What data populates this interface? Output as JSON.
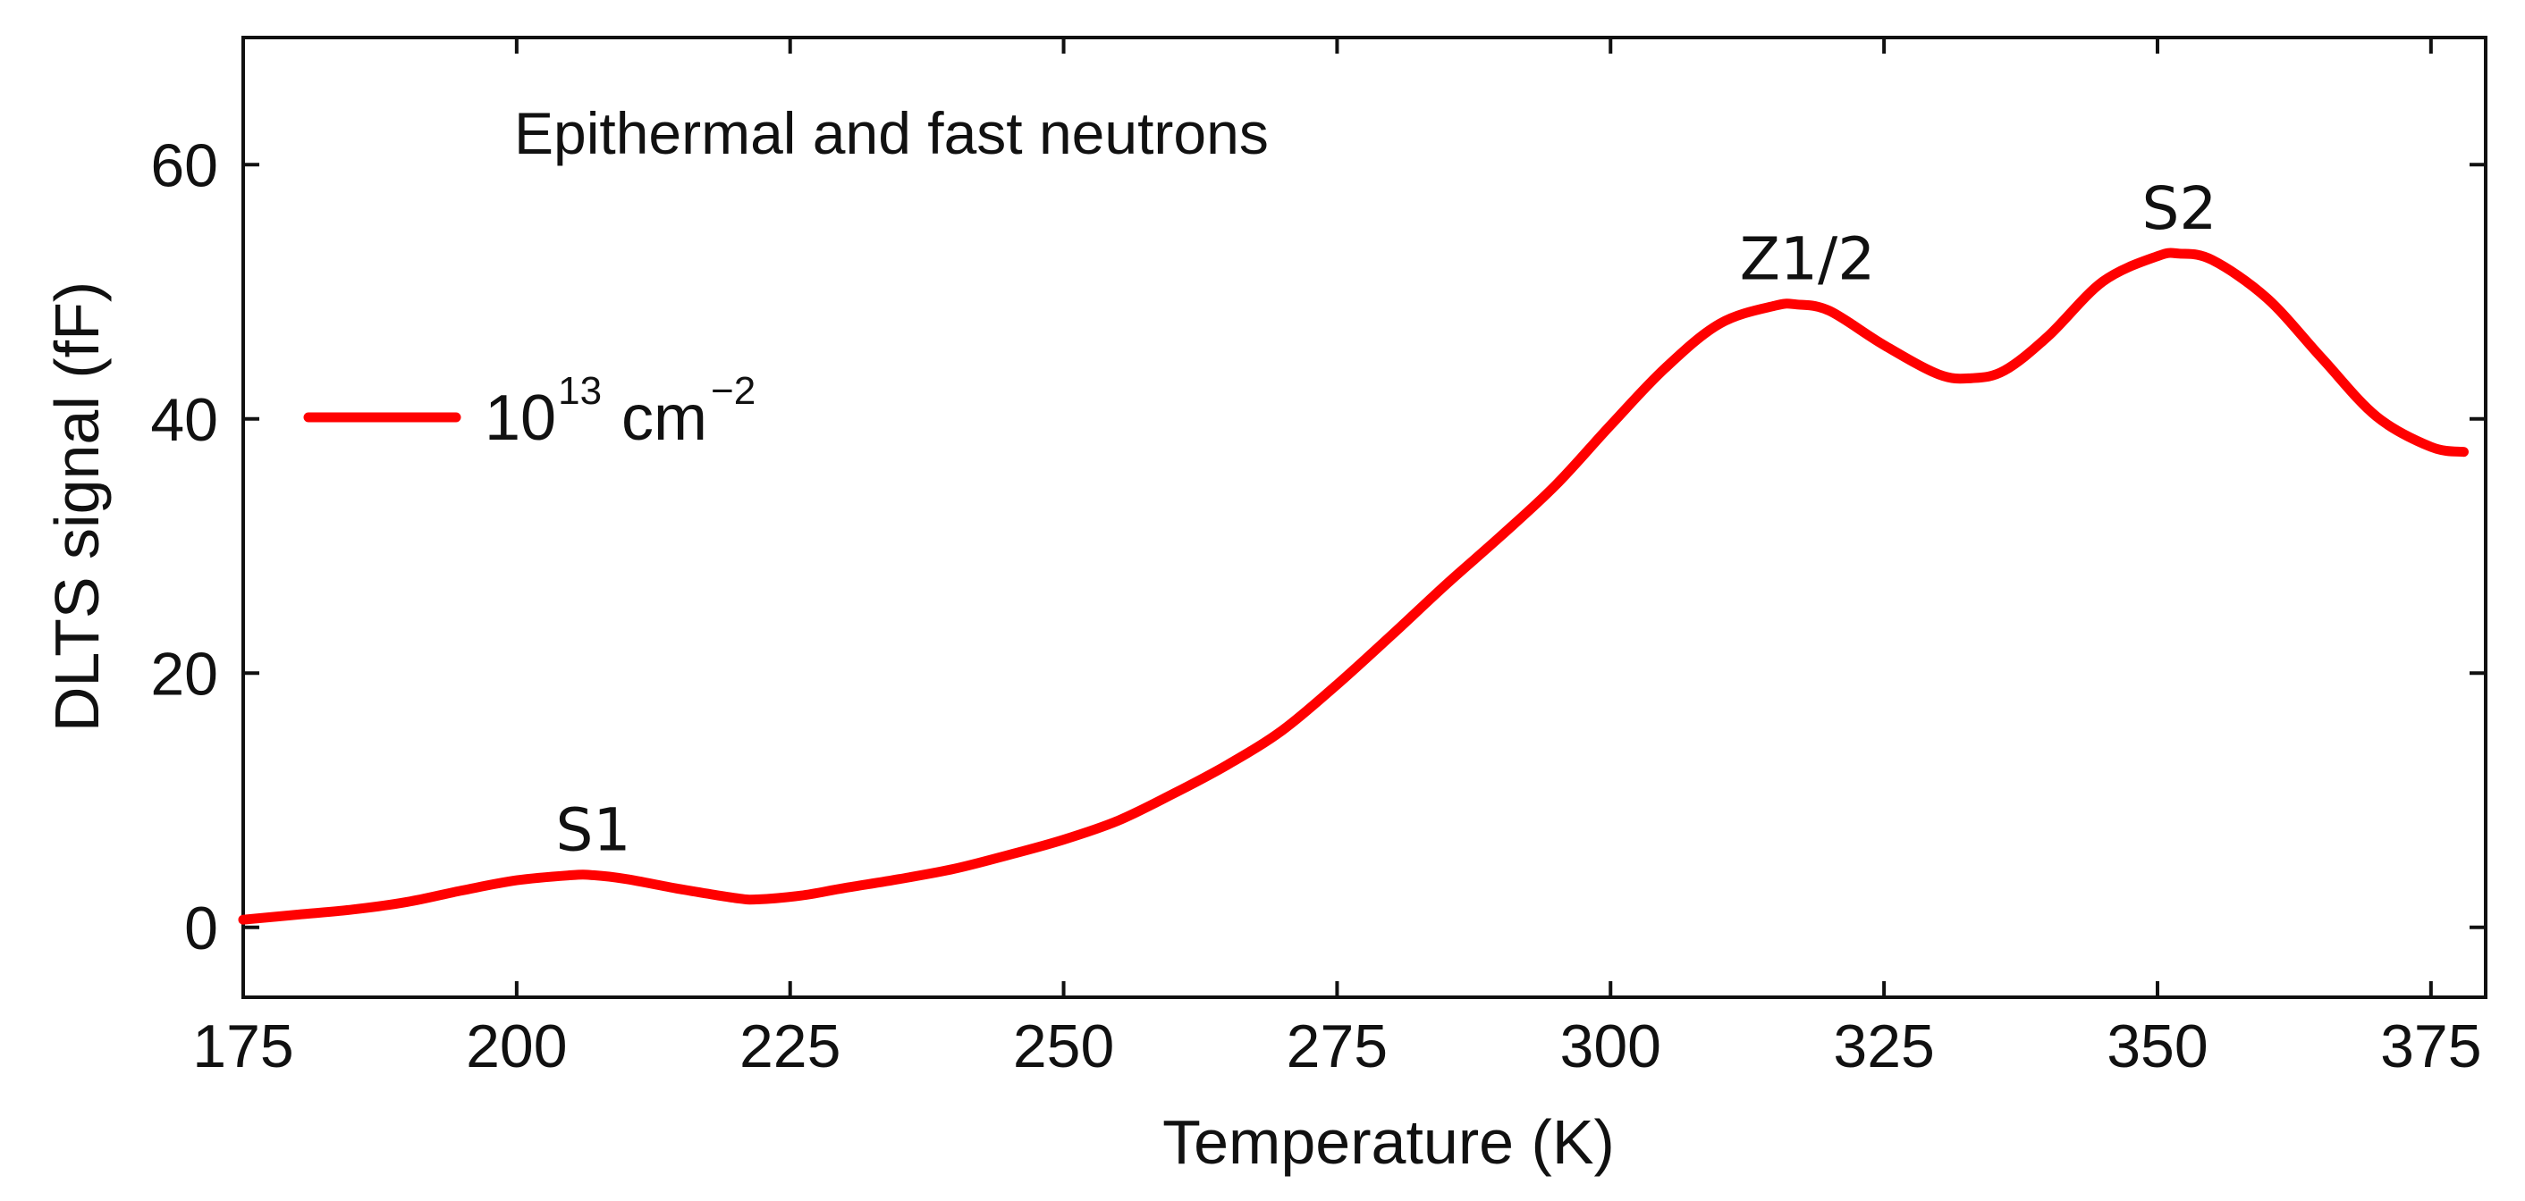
{
  "chart_data": {
    "type": "line",
    "title": "Epithermal and fast neutrons",
    "xlabel": "Temperature (K)",
    "ylabel": "DLTS signal (fF)",
    "xlim": [
      175,
      380
    ],
    "ylim": [
      -5.5,
      70
    ],
    "xticks": [
      175,
      200,
      225,
      250,
      275,
      300,
      325,
      350,
      375
    ],
    "yticks": [
      0,
      20,
      40,
      60
    ],
    "grid": false,
    "legend_position": "left",
    "series": [
      {
        "name": "10^13 cm^-2",
        "legend_base": "10",
        "legend_exp": "13",
        "legend_unit": "cm",
        "legend_unit_exp": "−2",
        "color": "#ff0000",
        "x": [
          175,
          180,
          185,
          190,
          195,
          200,
          205,
          207,
          210,
          215,
          220,
          222,
          226,
          230,
          235,
          240,
          245,
          250,
          255,
          260,
          265,
          270,
          275,
          280,
          285,
          290,
          295,
          300,
          305,
          310,
          315,
          317,
          320,
          325,
          330,
          333,
          336,
          340,
          345,
          350,
          352,
          355,
          360,
          365,
          370,
          375,
          378
        ],
        "y": [
          0.6,
          1.0,
          1.4,
          2.0,
          2.9,
          3.7,
          4.1,
          4.1,
          3.8,
          3.0,
          2.3,
          2.2,
          2.5,
          3.1,
          3.8,
          4.6,
          5.7,
          6.9,
          8.4,
          10.5,
          12.8,
          15.5,
          19.1,
          23.0,
          27.0,
          30.8,
          34.8,
          39.5,
          44.0,
          47.5,
          48.9,
          49.0,
          48.5,
          45.8,
          43.5,
          43.2,
          43.8,
          46.5,
          50.8,
          52.8,
          53.0,
          52.5,
          49.5,
          44.8,
          40.2,
          37.8,
          37.4
        ]
      }
    ],
    "annotations": [
      {
        "text": "S1",
        "x": 207,
        "y": 4.1
      },
      {
        "text": "Z1/2",
        "x": 318,
        "y": 49.0
      },
      {
        "text": "S2",
        "x": 352,
        "y": 53.0
      }
    ]
  }
}
